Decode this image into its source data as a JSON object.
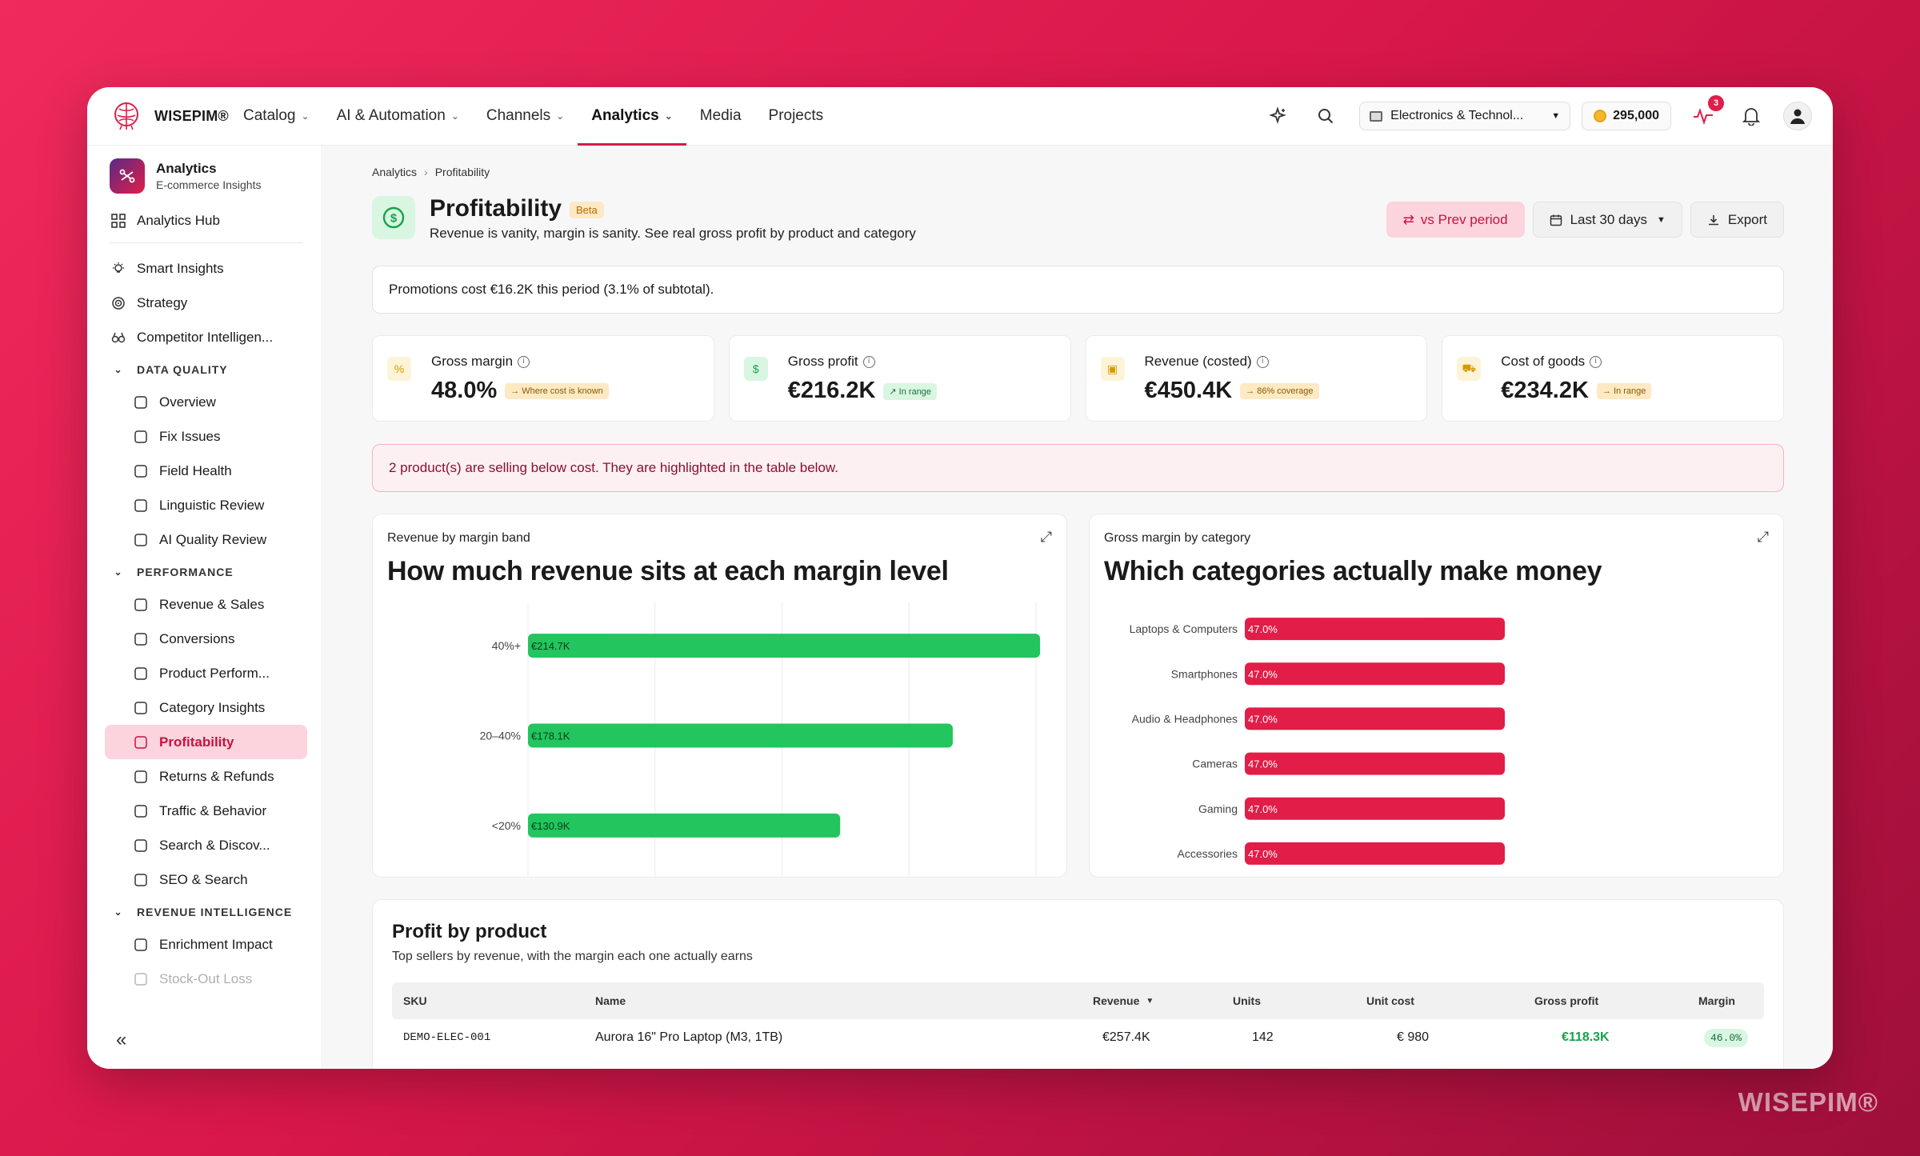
{
  "brand": {
    "name": "WISEPIM®",
    "watermark": "WISEPIM®"
  },
  "nav": {
    "items": [
      {
        "label": "Catalog",
        "dropdown": true
      },
      {
        "label": "AI & Automation",
        "dropdown": true
      },
      {
        "label": "Channels",
        "dropdown": true
      },
      {
        "label": "Analytics",
        "dropdown": true,
        "active": true
      },
      {
        "label": "Media",
        "dropdown": false
      },
      {
        "label": "Projects",
        "dropdown": false
      }
    ]
  },
  "topbar": {
    "store": "Electronics & Technol...",
    "credits": "295,000",
    "activity_badge": "3"
  },
  "sidebar": {
    "header": {
      "title": "Analytics",
      "subtitle": "E-commerce Insights"
    },
    "hub": "Analytics Hub",
    "top_items": [
      "Smart Insights",
      "Strategy",
      "Competitor Intelligen..."
    ],
    "sections": [
      {
        "title": "DATA QUALITY",
        "items": [
          "Overview",
          "Fix Issues",
          "Field Health",
          "Linguistic Review",
          "AI Quality Review"
        ]
      },
      {
        "title": "PERFORMANCE",
        "items": [
          "Revenue & Sales",
          "Conversions",
          "Product Perform...",
          "Category Insights",
          "Profitability",
          "Returns & Refunds",
          "Traffic & Behavior",
          "Search & Discov...",
          "SEO & Search"
        ]
      },
      {
        "title": "REVENUE INTELLIGENCE",
        "items": [
          "Enrichment Impact",
          "Stock-Out Loss"
        ]
      }
    ],
    "active": "Profitability",
    "collapse": "«"
  },
  "page": {
    "breadcrumb": [
      "Analytics",
      "Profitability"
    ],
    "title": "Profitability",
    "beta": "Beta",
    "subtitle": "Revenue is vanity, margin is sanity. See real gross profit by product and category",
    "compare_button": "vs Prev period",
    "range_button": "Last 30 days",
    "export_button": "Export",
    "notice": "Promotions cost €16.2K this period (3.1% of subtotal).",
    "alert": "2 product(s) are selling below cost. They are highlighted in the table below."
  },
  "kpis": [
    {
      "label": "Gross margin",
      "value": "48.0%",
      "tag": "→ Where cost is known",
      "tag_style": "amber",
      "icon": "percent-icon",
      "icon_bg": "#fdf3d6",
      "icon_color": "#d49b00"
    },
    {
      "label": "Gross profit",
      "value": "€216.2K",
      "tag": "↗ In range",
      "tag_style": "green",
      "icon": "dollar-icon",
      "icon_bg": "#d9f6e2",
      "icon_color": "#16a34a"
    },
    {
      "label": "Revenue (costed)",
      "value": "€450.4K",
      "tag": "→ 86% coverage",
      "tag_style": "amber",
      "icon": "cash-icon",
      "icon_bg": "#fdf3d6",
      "icon_color": "#d49b00"
    },
    {
      "label": "Cost of goods",
      "value": "€234.2K",
      "tag": "→ In range",
      "tag_style": "amber",
      "icon": "truck-icon",
      "icon_bg": "#fdf3d6",
      "icon_color": "#d49b00"
    }
  ],
  "chart_data": [
    {
      "type": "bar",
      "orientation": "horizontal",
      "kicker": "Revenue by margin band",
      "title": "How much revenue sits at each margin level",
      "categories": [
        "40%+",
        "20–40%",
        "<20%"
      ],
      "values": [
        214.7,
        178.1,
        130.9
      ],
      "labels": [
        "€214.7K",
        "€178.1K",
        "€130.9K"
      ],
      "color": "#22c55e",
      "grid": true
    },
    {
      "type": "bar",
      "orientation": "horizontal",
      "kicker": "Gross margin by category",
      "title": "Which categories actually make money",
      "categories": [
        "Laptops & Computers",
        "Smartphones",
        "Audio & Headphones",
        "Cameras",
        "Gaming",
        "Accessories"
      ],
      "values": [
        47.0,
        47.0,
        47.0,
        47.0,
        47.0,
        47.0
      ],
      "labels": [
        "47.0%",
        "47.0%",
        "47.0%",
        "47.0%",
        "47.0%",
        "47.0%"
      ],
      "color": "#e11d48",
      "grid": false
    }
  ],
  "table": {
    "title": "Profit by product",
    "subtitle": "Top sellers by revenue, with the margin each one actually earns",
    "columns": [
      "SKU",
      "Name",
      "Revenue",
      "Units",
      "Unit cost",
      "Gross profit",
      "Margin"
    ],
    "rows": [
      {
        "sku": "DEMO-ELEC-001",
        "name": "Aurora 16\" Pro Laptop (M3, 1TB)",
        "revenue": "€257.4K",
        "units": "142",
        "unit_cost": "€ 980",
        "gross_profit": "€118.3K",
        "margin": "46.0%"
      }
    ]
  }
}
